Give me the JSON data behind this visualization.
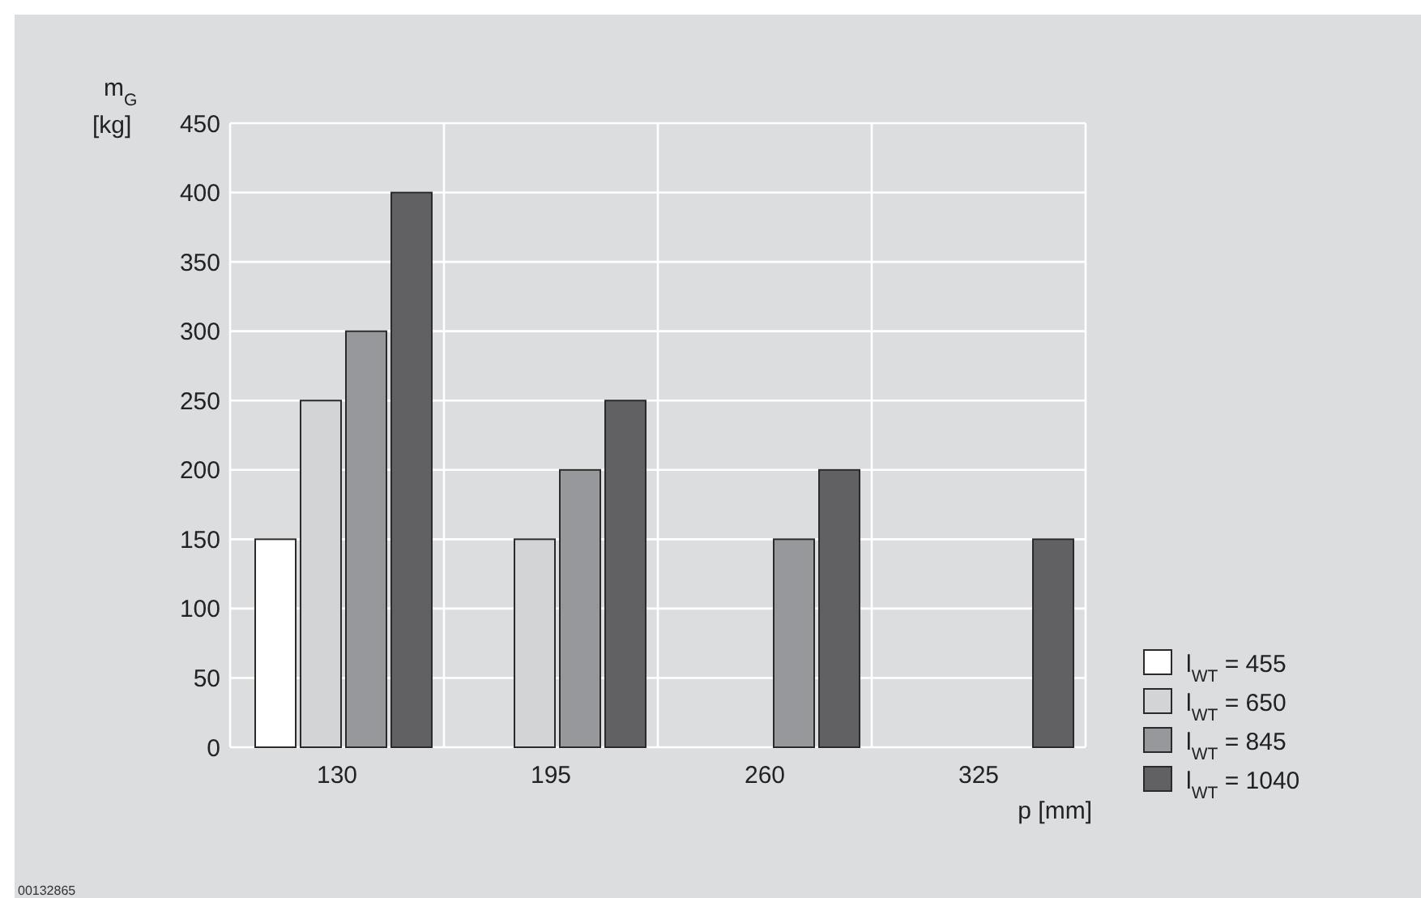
{
  "chart_data": {
    "type": "bar",
    "xlabel": "p [mm]",
    "ylabel": "m$_{G}$\n[kg]",
    "categories": [
      "130",
      "195",
      "260",
      "325"
    ],
    "series": [
      {
        "name": "l$_{WT}$ = 455",
        "color": "#ffffff",
        "values": [
          150,
          null,
          null,
          null
        ]
      },
      {
        "name": "l$_{WT}$ = 650",
        "color": "#d3d4d6",
        "values": [
          250,
          150,
          null,
          null
        ]
      },
      {
        "name": "l$_{WT}$ = 845",
        "color": "#97989b",
        "values": [
          300,
          200,
          150,
          null
        ]
      },
      {
        "name": "l$_{WT}$ = 1040",
        "color": "#616163",
        "values": [
          400,
          250,
          200,
          150
        ]
      }
    ],
    "ylim": [
      0,
      450
    ],
    "yticks": [
      0,
      50,
      100,
      150,
      200,
      250,
      300,
      350,
      400,
      450
    ],
    "grid": true,
    "legend": "bottom right",
    "annotations": [
      "00132865"
    ]
  }
}
